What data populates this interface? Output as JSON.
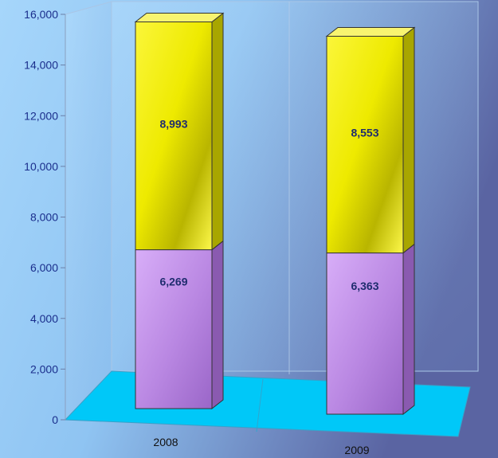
{
  "chart_data": {
    "type": "bar",
    "stacked": true,
    "three_d": true,
    "categories": [
      "2008",
      "2009"
    ],
    "series": [
      {
        "values": [
          6269,
          6363
        ],
        "labels": [
          "6,269",
          "6,363"
        ],
        "color": "#c48ee8"
      },
      {
        "values": [
          8993,
          8553
        ],
        "labels": [
          "8,993",
          "8,553"
        ],
        "color": "#f2ef00"
      }
    ],
    "yticks": [
      "0",
      "2,000",
      "4,000",
      "6,000",
      "8,000",
      "10,000",
      "12,000",
      "14,000",
      "16,000"
    ],
    "ylim": [
      0,
      16000
    ],
    "grid": false,
    "legend": "none",
    "floor_color": "#00c8f8",
    "background": [
      "#9fd0f8",
      "#5e6ea8"
    ]
  }
}
